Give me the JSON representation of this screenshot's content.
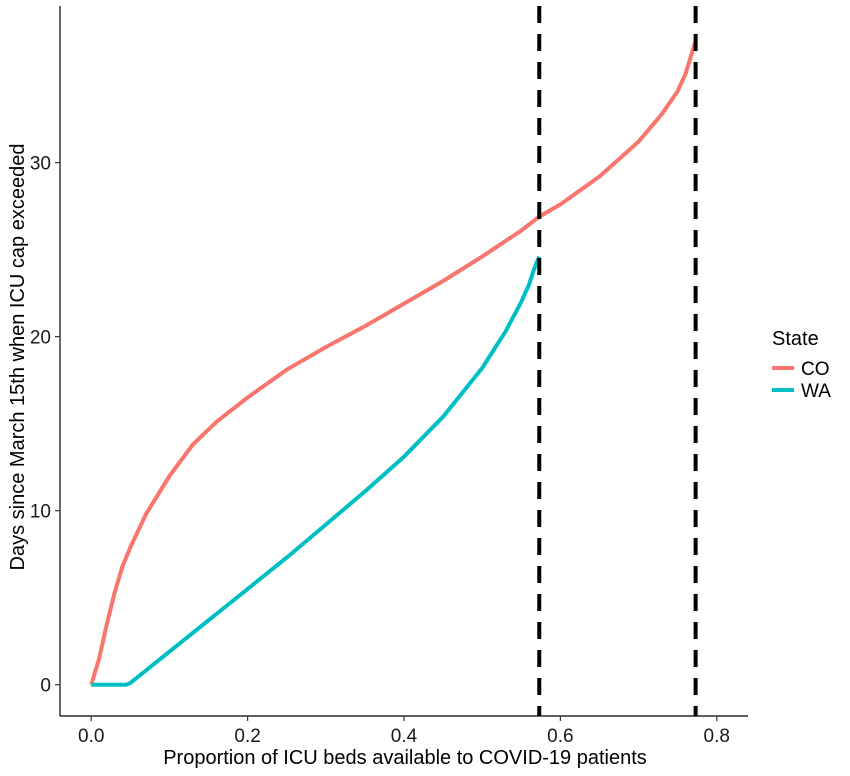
{
  "chart_data": {
    "type": "line",
    "title": "",
    "xlabel": "Proportion of ICU beds available to COVID-19 patients",
    "ylabel": "Days since March 15th when ICU cap exceeded",
    "xlim": [
      -0.04,
      0.84
    ],
    "ylim": [
      -1.8,
      39.0
    ],
    "x_ticks": [
      0.0,
      0.2,
      0.4,
      0.6,
      0.8
    ],
    "x_tick_labels": [
      "0.0",
      "0.2",
      "0.4",
      "0.6",
      "0.8"
    ],
    "y_ticks": [
      0,
      10,
      20,
      30
    ],
    "y_tick_labels": [
      "0",
      "10",
      "20",
      "30"
    ],
    "grid": false,
    "legend": {
      "title": "State",
      "position": "right"
    },
    "series": [
      {
        "name": "CO",
        "color": "#F8766D",
        "x": [
          0.0,
          0.01,
          0.02,
          0.03,
          0.04,
          0.05,
          0.07,
          0.1,
          0.13,
          0.16,
          0.2,
          0.25,
          0.3,
          0.35,
          0.4,
          0.45,
          0.5,
          0.55,
          0.573,
          0.6,
          0.65,
          0.7,
          0.73,
          0.75,
          0.76,
          0.773
        ],
        "values": [
          0,
          1.5,
          3.5,
          5.3,
          6.8,
          7.9,
          9.8,
          12.0,
          13.8,
          15.1,
          16.5,
          18.1,
          19.4,
          20.6,
          21.9,
          23.2,
          24.6,
          26.1,
          26.9,
          27.6,
          29.2,
          31.2,
          32.8,
          34.1,
          35.1,
          37.0
        ]
      },
      {
        "name": "WA",
        "color": "#00BFC4",
        "x": [
          0.0,
          0.045,
          0.05,
          0.1,
          0.15,
          0.2,
          0.25,
          0.3,
          0.35,
          0.4,
          0.45,
          0.5,
          0.53,
          0.55,
          0.56,
          0.565,
          0.57,
          0.573
        ],
        "values": [
          0,
          0,
          0.1,
          1.9,
          3.7,
          5.5,
          7.3,
          9.2,
          11.1,
          13.1,
          15.4,
          18.2,
          20.3,
          22.0,
          23.0,
          23.7,
          24.3,
          24.6
        ]
      }
    ],
    "vlines": [
      {
        "x": 0.573,
        "style": "dashed",
        "color": "#000000"
      },
      {
        "x": 0.773,
        "style": "dashed",
        "color": "#000000"
      }
    ]
  }
}
